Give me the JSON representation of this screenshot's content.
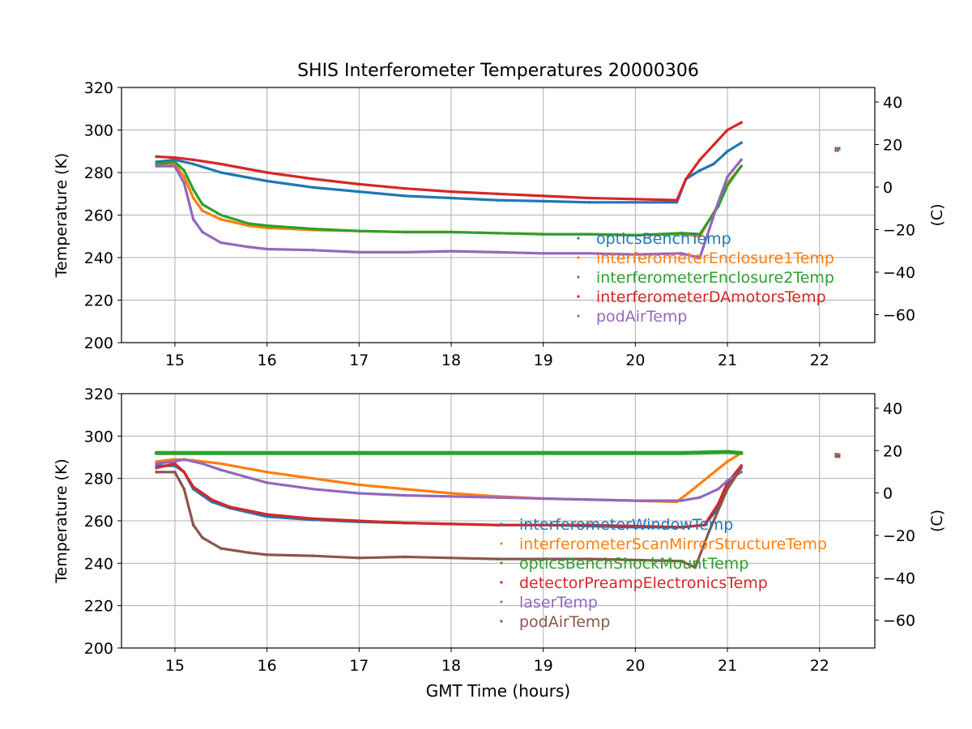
{
  "figure": {
    "title": "SHIS Interferometer Temperatures 20000306",
    "xlabel": "GMT Time (hours)"
  },
  "chart_data": [
    {
      "type": "scatter",
      "ylabel": "Temperature (K)",
      "ylabel_right": "(C)",
      "xlim": [
        14.42,
        22.6
      ],
      "ylim": [
        200,
        320
      ],
      "xticks": [
        15,
        16,
        17,
        18,
        19,
        20,
        21,
        22
      ],
      "yticks": [
        200,
        220,
        240,
        260,
        280,
        300,
        320
      ],
      "yticks_right": [
        -60,
        -40,
        -20,
        0,
        20,
        40
      ],
      "grid": true,
      "legend_position": "lower-right",
      "series": [
        {
          "name": "opticsBenchTemp",
          "color": "#1f77b4",
          "x": [
            14.8,
            15.0,
            15.2,
            15.5,
            16.0,
            16.5,
            17.0,
            17.5,
            18.0,
            18.5,
            19.0,
            19.5,
            20.0,
            20.45,
            20.55,
            20.7,
            20.85,
            21.0,
            21.15
          ],
          "y": [
            285,
            286,
            284,
            280,
            276,
            273,
            271,
            269,
            268,
            267,
            266.5,
            266,
            266,
            266,
            277,
            281,
            284,
            290,
            294
          ]
        },
        {
          "name": "interferometerEnclosure1Temp",
          "color": "#ff7f0e",
          "x": [
            14.8,
            15.0,
            15.1,
            15.2,
            15.3,
            15.5,
            15.8,
            16.0,
            16.5,
            17.0,
            17.5,
            18.0,
            18.5,
            19.0,
            19.5,
            20.0,
            20.5,
            20.7,
            20.9,
            21.0,
            21.15
          ],
          "y": [
            284,
            284,
            278,
            268,
            262,
            258,
            255,
            254,
            253,
            252.5,
            252,
            252,
            251.5,
            251,
            251,
            250.5,
            251,
            250,
            265,
            275,
            283
          ]
        },
        {
          "name": "interferometerEnclosure2Temp",
          "color": "#2ca02c",
          "x": [
            14.8,
            15.0,
            15.1,
            15.2,
            15.3,
            15.5,
            15.8,
            16.0,
            16.5,
            17.0,
            17.5,
            18.0,
            18.5,
            19.0,
            19.5,
            20.0,
            20.5,
            20.7,
            20.9,
            21.0,
            21.15
          ],
          "y": [
            284,
            285,
            281,
            272,
            265,
            260,
            256,
            255,
            253.5,
            252.5,
            252,
            252,
            251.5,
            251,
            251,
            250.5,
            251.5,
            251,
            264,
            274,
            283
          ]
        },
        {
          "name": "interferometerDAmotorsTemp",
          "color": "#d62728",
          "x": [
            14.8,
            15.0,
            15.2,
            15.5,
            16.0,
            16.5,
            17.0,
            17.5,
            18.0,
            18.5,
            19.0,
            19.5,
            20.0,
            20.45,
            20.55,
            20.7,
            20.85,
            21.0,
            21.15
          ],
          "y": [
            287.5,
            287,
            286,
            284,
            280,
            277,
            274.5,
            272.5,
            271,
            270,
            269,
            268,
            267.5,
            267,
            277,
            286,
            293,
            300,
            303.5
          ]
        },
        {
          "name": "podAirTemp",
          "color": "#9467bd",
          "x": [
            14.8,
            15.0,
            15.1,
            15.2,
            15.3,
            15.5,
            15.8,
            16.0,
            16.5,
            17.0,
            17.5,
            18.0,
            18.5,
            19.0,
            19.5,
            20.0,
            20.5,
            20.7,
            20.9,
            21.0,
            21.15
          ],
          "y": [
            283,
            283,
            275,
            258,
            252,
            247,
            245,
            244,
            243.5,
            242.5,
            242.5,
            243,
            242.5,
            242,
            242,
            241.5,
            242,
            240,
            266,
            278,
            286
          ]
        }
      ],
      "stray_points": [
        {
          "x": 22.2,
          "y": 290.5,
          "colors": [
            "#1f77b4",
            "#ff7f0e",
            "#2ca02c",
            "#d62728",
            "#9467bd"
          ]
        }
      ]
    },
    {
      "type": "scatter",
      "ylabel": "Temperature (K)",
      "ylabel_right": "(C)",
      "xlim": [
        14.42,
        22.6
      ],
      "ylim": [
        200,
        320
      ],
      "xticks": [
        15,
        16,
        17,
        18,
        19,
        20,
        21,
        22
      ],
      "yticks": [
        200,
        220,
        240,
        260,
        280,
        300,
        320
      ],
      "yticks_right": [
        -60,
        -40,
        -20,
        0,
        20,
        40
      ],
      "grid": true,
      "legend_position": "lower-right",
      "series": [
        {
          "name": "interferometerWindowTemp",
          "color": "#1f77b4",
          "x": [
            14.8,
            15.0,
            15.1,
            15.2,
            15.4,
            15.6,
            16.0,
            16.5,
            17.0,
            17.5,
            18.0,
            18.5,
            19.0,
            19.5,
            20.0,
            20.5,
            20.75,
            20.9,
            21.0,
            21.15
          ],
          "y": [
            286,
            286,
            283,
            275,
            269,
            266,
            262,
            260.5,
            259.5,
            259,
            258.5,
            258,
            258,
            257.5,
            257,
            257,
            258,
            266,
            277,
            286
          ]
        },
        {
          "name": "interferometerScanMirrorStructureTemp",
          "color": "#ff7f0e",
          "x": [
            14.8,
            15.0,
            15.2,
            15.5,
            16.0,
            16.5,
            17.0,
            17.5,
            18.0,
            18.5,
            19.0,
            19.5,
            20.0,
            20.45,
            20.6,
            20.8,
            21.0,
            21.15
          ],
          "y": [
            288,
            289,
            288.5,
            287,
            283,
            280,
            277,
            275,
            273,
            271.5,
            270.5,
            270,
            269.5,
            269,
            274,
            281,
            288,
            292
          ]
        },
        {
          "name": "opticsBenchShockMountTemp",
          "color": "#2ca02c",
          "x": [
            14.8,
            15.0,
            15.5,
            16.0,
            16.5,
            17.0,
            17.5,
            18.0,
            18.5,
            19.0,
            19.5,
            20.0,
            20.5,
            21.0,
            21.15
          ],
          "y": [
            292,
            292,
            292,
            292,
            292,
            292,
            292,
            292,
            292,
            292,
            292,
            292,
            292,
            292.5,
            292
          ]
        },
        {
          "name": "detectorPreampElectronicsTemp",
          "color": "#d62728",
          "x": [
            14.8,
            15.0,
            15.1,
            15.2,
            15.4,
            15.6,
            16.0,
            16.5,
            17.0,
            17.5,
            18.0,
            18.5,
            19.0,
            19.5,
            20.0,
            20.5,
            20.75,
            20.9,
            21.0,
            21.15
          ],
          "y": [
            285,
            287,
            283,
            276,
            270,
            266.5,
            263,
            261,
            260,
            259,
            258.5,
            258,
            258,
            258,
            257.5,
            257,
            258,
            268,
            278,
            286
          ]
        },
        {
          "name": "laserTemp",
          "color": "#9467bd",
          "x": [
            14.8,
            15.0,
            15.1,
            15.3,
            15.5,
            16.0,
            16.5,
            17.0,
            17.5,
            18.0,
            18.5,
            19.0,
            19.5,
            20.0,
            20.5,
            20.7,
            20.9,
            21.0,
            21.15
          ],
          "y": [
            287,
            288,
            289,
            287,
            284,
            278,
            275,
            273,
            272,
            271.5,
            271,
            270.5,
            270,
            269.5,
            269.5,
            271,
            275,
            279,
            283
          ]
        },
        {
          "name": "podAirTemp",
          "color": "#8c564b",
          "x": [
            14.8,
            15.0,
            15.1,
            15.2,
            15.3,
            15.5,
            15.8,
            16.0,
            16.5,
            17.0,
            17.5,
            18.0,
            18.5,
            19.0,
            19.5,
            20.0,
            20.5,
            20.65,
            20.8,
            21.0,
            21.15
          ],
          "y": [
            283,
            283,
            275,
            258,
            252,
            247,
            245,
            244,
            243.5,
            242.5,
            243,
            242.5,
            242,
            242,
            242,
            241.5,
            241,
            238,
            255,
            275,
            285
          ]
        }
      ],
      "stray_points": [
        {
          "x": 22.2,
          "y": 290.5,
          "colors": [
            "#2ca02c",
            "#1f77b4",
            "#ff7f0e",
            "#d62728",
            "#9467bd",
            "#8c564b"
          ]
        }
      ]
    }
  ]
}
